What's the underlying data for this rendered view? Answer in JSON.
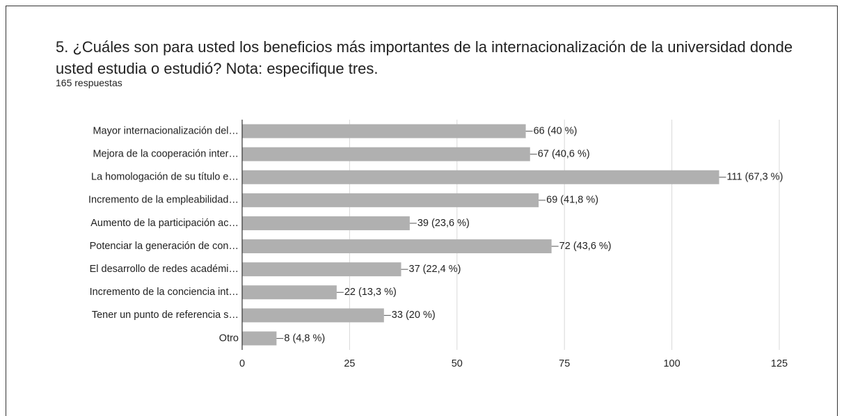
{
  "chart_data": {
    "type": "hbar",
    "title": "5. ¿Cuáles son para usted los beneficios más importantes de la internacionalización de la universidad donde usted estudia o estudió?  Nota: especifique tres.",
    "subtitle": "165 respuestas",
    "categories": [
      "Mayor internacionalización del…",
      "Mejora de la cooperación inter…",
      "La homologación de su título e…",
      "Incremento de la empleabilidad…",
      "Aumento de la participación ac…",
      "Potenciar la generación de con…",
      "El desarrollo de redes académi…",
      "Incremento de la conciencia int…",
      "Tener un punto de referencia s…",
      "Otro"
    ],
    "values": [
      66,
      67,
      111,
      69,
      39,
      72,
      37,
      22,
      33,
      8
    ],
    "value_labels": [
      "66 (40 %)",
      "67 (40,6 %)",
      "111 (67,3 %)",
      "69 (41,8 %)",
      "39 (23,6 %)",
      "72 (43,6 %)",
      "37 (22,4 %)",
      "22 (13,3 %)",
      "33 (20 %)",
      "8 (4,8 %)"
    ],
    "color": "#b0b0b0",
    "xlim": [
      0,
      125
    ],
    "xticks": [
      0,
      25,
      50,
      75,
      100,
      125
    ],
    "grid": true
  }
}
